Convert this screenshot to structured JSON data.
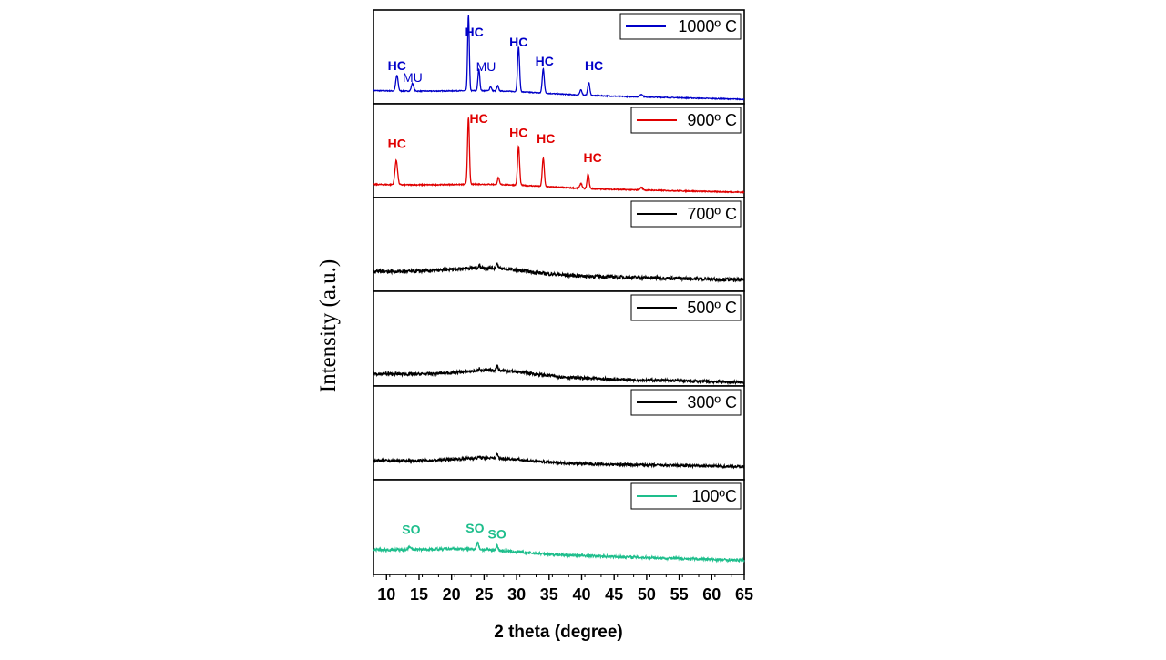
{
  "chart_data": {
    "type": "line",
    "layout": "stacked-panels",
    "xlabel": "2 theta (degree)",
    "ylabel": "Intensity (a.u.)",
    "xlim": [
      8,
      65
    ],
    "x_ticks": [
      10,
      15,
      20,
      25,
      30,
      35,
      40,
      45,
      50,
      55,
      60,
      65
    ],
    "series": [
      {
        "name": "1000º C",
        "color": "#0000c8",
        "baseline": 0.12,
        "tail": 0.02,
        "bumps": [
          {
            "x": 27,
            "w": 10,
            "h": 0.03
          }
        ],
        "peaks": [
          {
            "x": 11.6,
            "h": 0.18,
            "w": 0.25
          },
          {
            "x": 14.0,
            "h": 0.09,
            "w": 0.25
          },
          {
            "x": 22.6,
            "h": 0.88,
            "w": 0.18
          },
          {
            "x": 24.2,
            "h": 0.25,
            "w": 0.2
          },
          {
            "x": 26.0,
            "h": 0.05,
            "w": 0.2
          },
          {
            "x": 27.1,
            "h": 0.06,
            "w": 0.2
          },
          {
            "x": 30.3,
            "h": 0.52,
            "w": 0.22
          },
          {
            "x": 34.1,
            "h": 0.28,
            "w": 0.22
          },
          {
            "x": 39.9,
            "h": 0.06,
            "w": 0.22
          },
          {
            "x": 41.1,
            "h": 0.15,
            "w": 0.22
          },
          {
            "x": 49.2,
            "h": 0.03,
            "w": 0.3
          }
        ],
        "noise": 0.01,
        "annotations": [
          {
            "text": "HC",
            "x": 11.6,
            "y": 0.36,
            "bold": true
          },
          {
            "text": "MU",
            "x": 14.0,
            "y": 0.22,
            "bold": false
          },
          {
            "text": "HC",
            "x": 23.5,
            "y": 0.75,
            "bold": true
          },
          {
            "text": "MU",
            "x": 25.3,
            "y": 0.35,
            "bold": false
          },
          {
            "text": "HC",
            "x": 30.3,
            "y": 0.63,
            "bold": true
          },
          {
            "text": "HC",
            "x": 34.3,
            "y": 0.41,
            "bold": true
          },
          {
            "text": "HC",
            "x": 41.9,
            "y": 0.36,
            "bold": true
          }
        ]
      },
      {
        "name": "900º C",
        "color": "#e00000",
        "baseline": 0.12,
        "tail": 0.03,
        "bumps": [
          {
            "x": 27,
            "w": 10,
            "h": 0.03
          }
        ],
        "peaks": [
          {
            "x": 11.5,
            "h": 0.28,
            "w": 0.28
          },
          {
            "x": 22.6,
            "h": 0.78,
            "w": 0.2
          },
          {
            "x": 27.2,
            "h": 0.08,
            "w": 0.2
          },
          {
            "x": 30.3,
            "h": 0.45,
            "w": 0.22
          },
          {
            "x": 34.1,
            "h": 0.33,
            "w": 0.22
          },
          {
            "x": 39.9,
            "h": 0.06,
            "w": 0.22
          },
          {
            "x": 41.0,
            "h": 0.17,
            "w": 0.22
          },
          {
            "x": 49.2,
            "h": 0.03,
            "w": 0.3
          }
        ],
        "noise": 0.012,
        "annotations": [
          {
            "text": "HC",
            "x": 11.6,
            "y": 0.54,
            "bold": true
          },
          {
            "text": "HC",
            "x": 24.2,
            "y": 0.83,
            "bold": true
          },
          {
            "text": "HC",
            "x": 30.3,
            "y": 0.67,
            "bold": true
          },
          {
            "text": "HC",
            "x": 34.5,
            "y": 0.6,
            "bold": true
          },
          {
            "text": "HC",
            "x": 41.7,
            "y": 0.38,
            "bold": true
          }
        ]
      },
      {
        "name": "700º C",
        "color": "#000000",
        "baseline": 0.2,
        "tail": 0.1,
        "bumps": [
          {
            "x": 25.5,
            "w": 8,
            "h": 0.07
          }
        ],
        "peaks": [
          {
            "x": 27.0,
            "h": 0.06,
            "w": 0.2
          },
          {
            "x": 24.3,
            "h": 0.03,
            "w": 0.2
          }
        ],
        "noise": 0.04,
        "annotations": []
      },
      {
        "name": "500º C",
        "color": "#000000",
        "baseline": 0.11,
        "tail": 0.01,
        "bumps": [
          {
            "x": 27,
            "w": 8,
            "h": 0.07
          }
        ],
        "peaks": [
          {
            "x": 27.0,
            "h": 0.06,
            "w": 0.2
          },
          {
            "x": 24.3,
            "h": 0.03,
            "w": 0.2
          }
        ],
        "noise": 0.035,
        "annotations": []
      },
      {
        "name": "300º C",
        "color": "#000000",
        "baseline": 0.19,
        "tail": 0.12,
        "bumps": [
          {
            "x": 26,
            "w": 8,
            "h": 0.05
          }
        ],
        "peaks": [
          {
            "x": 27.0,
            "h": 0.05,
            "w": 0.2
          },
          {
            "x": 24.3,
            "h": 0.02,
            "w": 0.2
          }
        ],
        "noise": 0.03,
        "annotations": []
      },
      {
        "name": "100ºC",
        "color": "#1ebe8c",
        "baseline": 0.25,
        "tail": 0.13,
        "bumps": [
          {
            "x": 23,
            "w": 9,
            "h": 0.04
          }
        ],
        "peaks": [
          {
            "x": 13.5,
            "h": 0.04,
            "w": 0.25
          },
          {
            "x": 24.0,
            "h": 0.08,
            "w": 0.25
          },
          {
            "x": 27.0,
            "h": 0.05,
            "w": 0.25
          }
        ],
        "noise": 0.03,
        "annotations": [
          {
            "text": "SO",
            "x": 13.8,
            "y": 0.43,
            "bold": true
          },
          {
            "text": "SO",
            "x": 23.6,
            "y": 0.45,
            "bold": true
          },
          {
            "text": "SO",
            "x": 27.0,
            "y": 0.38,
            "bold": true
          }
        ]
      }
    ]
  }
}
